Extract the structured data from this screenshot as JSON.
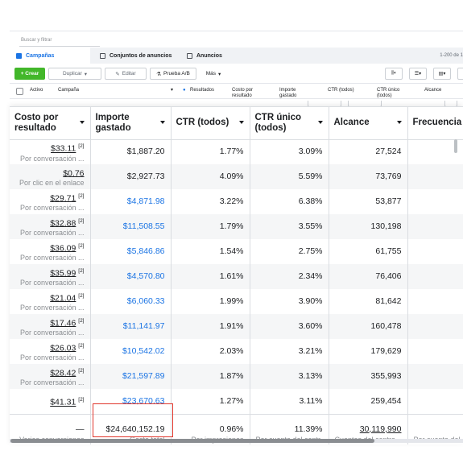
{
  "background": {
    "search_placeholder": "Buscar y filtrar",
    "range_text": "1-200 de 1",
    "tabs": [
      {
        "label": "Campañas"
      },
      {
        "label": "Conjuntos de anuncios"
      },
      {
        "label": "Anuncios"
      }
    ],
    "toolbar": {
      "create": "+ Crear",
      "duplicate": "Duplicar",
      "edit": "Editar",
      "ab_test": "Prueba A/B",
      "more": "Más"
    },
    "columns": {
      "active": "Activo",
      "campaign": "Campaña",
      "results": "Resultados",
      "cpr": "Costo por resultado",
      "spent": "Importe gastado",
      "ctr": "CTR (todos)",
      "unique_ctr": "CTR único (todos)",
      "reach": "Alcance"
    }
  },
  "table": {
    "headers": [
      {
        "label": "Costo por resultado"
      },
      {
        "label": "Importe gastado"
      },
      {
        "label": "CTR (todos)"
      },
      {
        "label": "CTR único (todos)"
      },
      {
        "label": "Alcance"
      },
      {
        "label": "Frecuencia"
      }
    ],
    "rows": [
      {
        "cpr": "$33.11",
        "fn": "[2]",
        "sub": "Por conversación ...",
        "spent": "$1,887.20",
        "spent_blue": false,
        "ctr": "1.77%",
        "uctr": "3.09%",
        "reach": "27,524"
      },
      {
        "cpr": "$0.76",
        "fn": "",
        "sub": "Por clic en el enlace",
        "spent": "$2,927.73",
        "spent_blue": false,
        "ctr": "4.09%",
        "uctr": "5.59%",
        "reach": "73,769"
      },
      {
        "cpr": "$29.71",
        "fn": "[2]",
        "sub": "Por conversación ...",
        "spent": "$4,871.98",
        "spent_blue": true,
        "ctr": "3.22%",
        "uctr": "6.38%",
        "reach": "53,877"
      },
      {
        "cpr": "$32.88",
        "fn": "[2]",
        "sub": "Por conversación ...",
        "spent": "$11,508.55",
        "spent_blue": true,
        "ctr": "1.79%",
        "uctr": "3.55%",
        "reach": "130,198"
      },
      {
        "cpr": "$36.09",
        "fn": "[2]",
        "sub": "Por conversación ...",
        "spent": "$5,846.86",
        "spent_blue": true,
        "ctr": "1.54%",
        "uctr": "2.75%",
        "reach": "61,755"
      },
      {
        "cpr": "$35.99",
        "fn": "[2]",
        "sub": "Por conversación ...",
        "spent": "$4,570.80",
        "spent_blue": true,
        "ctr": "1.61%",
        "uctr": "2.34%",
        "reach": "76,406"
      },
      {
        "cpr": "$21.04",
        "fn": "[2]",
        "sub": "Por conversación ...",
        "spent": "$6,060.33",
        "spent_blue": true,
        "ctr": "1.99%",
        "uctr": "3.90%",
        "reach": "81,642"
      },
      {
        "cpr": "$17.46",
        "fn": "[2]",
        "sub": "Por conversación ...",
        "spent": "$11,141.97",
        "spent_blue": true,
        "ctr": "1.91%",
        "uctr": "3.60%",
        "reach": "160,478"
      },
      {
        "cpr": "$26.03",
        "fn": "[2]",
        "sub": "Por conversación ...",
        "spent": "$10,542.02",
        "spent_blue": true,
        "ctr": "2.03%",
        "uctr": "3.21%",
        "reach": "179,629"
      },
      {
        "cpr": "$28.42",
        "fn": "[2]",
        "sub": "Por conversación ...",
        "spent": "$21,597.89",
        "spent_blue": true,
        "ctr": "1.87%",
        "uctr": "3.13%",
        "reach": "355,993"
      },
      {
        "cpr": "$41.31",
        "fn": "[2]",
        "sub": "",
        "spent": "$23,670.63",
        "spent_blue": true,
        "ctr": "1.27%",
        "uctr": "3.11%",
        "reach": "259,454"
      }
    ],
    "totals": {
      "cpr": "—",
      "cpr_sub": "Varias conversiones",
      "spent": "$24,640,152.19",
      "spent_sub": "Gasto total",
      "ctr": "0.96%",
      "ctr_sub": "Por impresiones",
      "uctr": "11.39%",
      "uctr_sub": "Por cuenta del centr...",
      "reach": "30,119,990",
      "reach_sub": "Cuentas del centro ...",
      "freq_sub": "Por cuenta del"
    }
  },
  "colors": {
    "link_blue": "#1b74e4",
    "highlight_red": "#e0362c",
    "create_green": "#42b72a"
  }
}
